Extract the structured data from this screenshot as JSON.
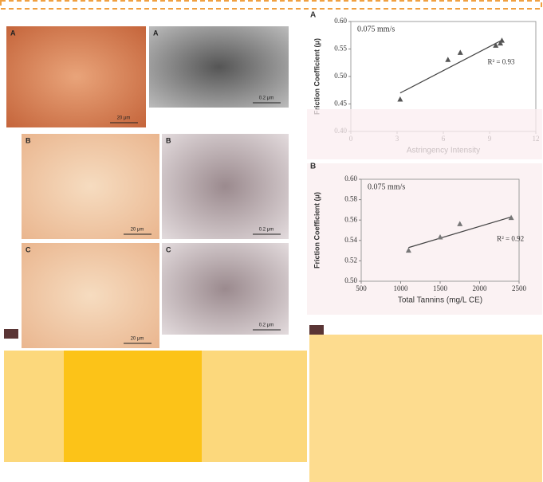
{
  "images": [
    {
      "label": "A",
      "scale": "20 μm"
    },
    {
      "label": "A",
      "scale": "0.2 μm"
    },
    {
      "label": "B",
      "scale": "20 μm"
    },
    {
      "label": "B",
      "scale": "0.2 μm"
    },
    {
      "label": "C",
      "scale": "20 μm"
    },
    {
      "label": "C",
      "scale": "0.2 μm"
    }
  ],
  "chart_data": [
    {
      "type": "scatter",
      "panel": "A",
      "annotation": "0.075 mm/s",
      "r2": "R² = 0.93",
      "x_label": "Astringency Intensity",
      "y_label": "Friction Coefficient (μ)",
      "x": [
        3.2,
        6.3,
        7.1,
        9.4,
        9.8,
        9.7
      ],
      "values": [
        0.458,
        0.53,
        0.543,
        0.556,
        0.565,
        0.56
      ],
      "trend": {
        "x": [
          3.2,
          9.8
        ],
        "y": [
          0.47,
          0.566
        ]
      },
      "xlim": [
        0,
        12
      ],
      "xticks": [
        0,
        3,
        6,
        9,
        12
      ],
      "ylim": [
        0.4,
        0.6
      ],
      "yticks": [
        {
          "value": 0.4,
          "label": "0.40"
        },
        {
          "value": 0.45,
          "label": "0.45"
        },
        {
          "value": 0.5,
          "label": "0.50"
        },
        {
          "value": 0.55,
          "label": "0.55"
        },
        {
          "value": 0.6,
          "label": "0.60"
        }
      ],
      "color": "#555555"
    },
    {
      "type": "scatter",
      "panel": "B",
      "annotation": "0.075 mm/s",
      "r2": "R² = 0.92",
      "x_label": "Total Tannins (mg/L CE)",
      "y_label": "Friction Coefficient (μ)",
      "x": [
        1100,
        1500,
        1750,
        2400
      ],
      "values": [
        0.53,
        0.543,
        0.556,
        0.562
      ],
      "trend": {
        "x": [
          1100,
          2400
        ],
        "y": [
          0.533,
          0.563
        ]
      },
      "xlim": [
        500,
        2500
      ],
      "xticks": [
        500,
        1000,
        1500,
        2000,
        2500
      ],
      "ylim": [
        0.5,
        0.6
      ],
      "yticks": [
        {
          "value": 0.5,
          "label": "0.50"
        },
        {
          "value": 0.52,
          "label": "0.52"
        },
        {
          "value": 0.54,
          "label": "0.54"
        },
        {
          "value": 0.56,
          "label": "0.56"
        },
        {
          "value": 0.58,
          "label": "0.58"
        },
        {
          "value": 0.6,
          "label": "0.60"
        }
      ],
      "color": "#777777"
    }
  ]
}
